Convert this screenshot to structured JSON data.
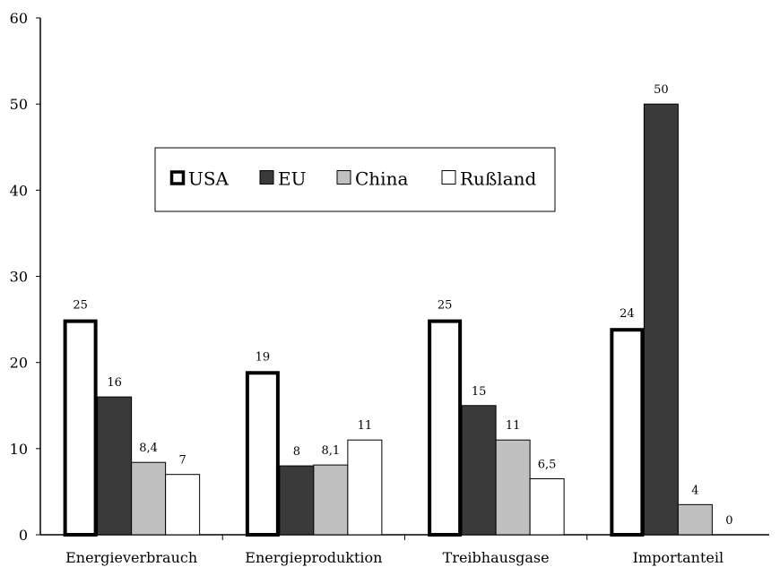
{
  "chart_data": {
    "type": "bar",
    "categories": [
      "Energieverbrauch",
      "Energieproduktion",
      "Treibhausgase",
      "Importanteil"
    ],
    "series": [
      {
        "name": "USA",
        "values": [
          25,
          19,
          25,
          24
        ],
        "labels": [
          "25",
          "19",
          "25",
          "24"
        ],
        "fill": "#ffffff",
        "stroke": "#000000",
        "thick_border": true
      },
      {
        "name": "EU",
        "values": [
          16,
          8,
          15,
          50
        ],
        "labels": [
          "16",
          "8",
          "15",
          "50"
        ],
        "fill": "#3a3a3a",
        "stroke": "#000000",
        "thick_border": false
      },
      {
        "name": "China",
        "values": [
          8.4,
          8.1,
          11,
          3.5
        ],
        "labels": [
          "8,4",
          "8,1",
          "11",
          "4"
        ],
        "fill": "#c0c0c0",
        "stroke": "#000000",
        "thick_border": false
      },
      {
        "name": "Rußland",
        "values": [
          7,
          11,
          6.5,
          0
        ],
        "labels": [
          "7",
          "11",
          "6,5",
          "0"
        ],
        "fill": "#ffffff",
        "stroke": "#000000",
        "thick_border": false
      }
    ],
    "ylim": [
      0,
      60
    ],
    "yticks": [
      0,
      10,
      20,
      30,
      40,
      50,
      60
    ],
    "title": "",
    "xlabel": "",
    "ylabel": "",
    "grid": false,
    "legend_position": "top-center"
  }
}
